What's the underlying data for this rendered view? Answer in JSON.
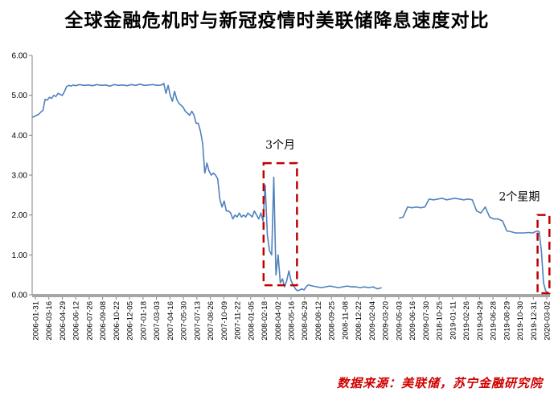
{
  "header": {
    "title": "全球金融危机时与新冠疫情时美联储降息速度对比"
  },
  "footer": {
    "source": "数据来源：美联储，苏宁金融研究院"
  },
  "chart_data": {
    "type": "line",
    "title": "全球金融危机时与新冠疫情时美联储降息速度对比",
    "xlabel": "",
    "ylabel": "",
    "ylim": [
      0,
      6
    ],
    "yticks": [
      "0.00",
      "1.00",
      "2.00",
      "3.00",
      "4.00",
      "5.00",
      "6.00"
    ],
    "grid": false,
    "x_tick_labels": [
      "2006-01-31",
      "2006-03-16",
      "2006-04-29",
      "2006-06-12",
      "2006-07-26",
      "2006-09-08",
      "2006-10-22",
      "2006-12-05",
      "2007-01-18",
      "2007-03-03",
      "2007-04-16",
      "2007-05-30",
      "2007-07-13",
      "2007-08-26",
      "2007-10-09",
      "2007-11-22",
      "2008-01-05",
      "2008-02-18",
      "2008-04-02",
      "2008-05-16",
      "2008-06-29",
      "2008-08-12",
      "2008-09-25",
      "2008-11-08",
      "2008-12-22",
      "2009-02-04",
      "2009-03-20",
      "2009-05-03",
      "2009-06-16",
      "2009-07-30",
      "2018-10-25",
      "2019-01-11",
      "2019-02-26",
      "2019-04-29",
      "2019-06-28",
      "2019-08-29",
      "2019-10-30",
      "2019-12-31",
      "2020-03-02"
    ],
    "series": [
      {
        "segment": "2006-2009",
        "points": [
          [
            0,
            4.45
          ],
          [
            1,
            4.47
          ],
          [
            2,
            4.5
          ],
          [
            3,
            4.52
          ],
          [
            4,
            4.58
          ],
          [
            5,
            4.62
          ],
          [
            6,
            4.9
          ],
          [
            7,
            4.88
          ],
          [
            8,
            4.95
          ],
          [
            9,
            4.92
          ],
          [
            10,
            5.0
          ],
          [
            11,
            4.97
          ],
          [
            12,
            5.05
          ],
          [
            13,
            5.02
          ],
          [
            14,
            5.0
          ],
          [
            15,
            5.1
          ],
          [
            16,
            5.22
          ],
          [
            17,
            5.25
          ],
          [
            18,
            5.23
          ],
          [
            19,
            5.26
          ],
          [
            20,
            5.24
          ],
          [
            22,
            5.27
          ],
          [
            24,
            5.25
          ],
          [
            26,
            5.26
          ],
          [
            28,
            5.24
          ],
          [
            30,
            5.27
          ],
          [
            32,
            5.25
          ],
          [
            34,
            5.26
          ],
          [
            36,
            5.23
          ],
          [
            38,
            5.27
          ],
          [
            40,
            5.25
          ],
          [
            42,
            5.26
          ],
          [
            44,
            5.24
          ],
          [
            46,
            5.27
          ],
          [
            48,
            5.25
          ],
          [
            50,
            5.28
          ],
          [
            52,
            5.25
          ],
          [
            54,
            5.26
          ],
          [
            56,
            5.27
          ],
          [
            58,
            5.25
          ],
          [
            60,
            5.26
          ],
          [
            61,
            5.3
          ],
          [
            62,
            5.05
          ],
          [
            63,
            5.25
          ],
          [
            64,
            5.0
          ],
          [
            65,
            4.85
          ],
          [
            66,
            5.1
          ],
          [
            67,
            4.9
          ],
          [
            68,
            4.8
          ],
          [
            69,
            4.75
          ],
          [
            70,
            4.7
          ],
          [
            71,
            4.6
          ],
          [
            72,
            4.55
          ],
          [
            73,
            4.5
          ],
          [
            74,
            4.6
          ],
          [
            75,
            4.5
          ],
          [
            76,
            4.3
          ],
          [
            77,
            4.3
          ],
          [
            78,
            4.1
          ],
          [
            79,
            3.8
          ],
          [
            80,
            3.05
          ],
          [
            81,
            3.3
          ],
          [
            82,
            3.1
          ],
          [
            83,
            3.0
          ],
          [
            84,
            3.05
          ],
          [
            85,
            3.0
          ],
          [
            86,
            2.9
          ],
          [
            87,
            2.4
          ],
          [
            88,
            2.2
          ],
          [
            89,
            2.35
          ],
          [
            90,
            2.1
          ],
          [
            91,
            2.1
          ],
          [
            92,
            2.05
          ],
          [
            93,
            1.9
          ],
          [
            94,
            2.0
          ],
          [
            95,
            1.95
          ],
          [
            96,
            2.05
          ],
          [
            97,
            1.95
          ],
          [
            98,
            2.0
          ],
          [
            99,
            1.95
          ],
          [
            100,
            2.05
          ],
          [
            101,
            2.0
          ],
          [
            102,
            1.95
          ],
          [
            103,
            2.1
          ],
          [
            104,
            2.0
          ],
          [
            105,
            1.9
          ],
          [
            106,
            2.05
          ],
          [
            107,
            1.85
          ],
          [
            108,
            2.75
          ],
          [
            109,
            1.5
          ],
          [
            110,
            1.1
          ],
          [
            111,
            1.0
          ],
          [
            112,
            2.95
          ],
          [
            113,
            0.5
          ],
          [
            114,
            1.0
          ],
          [
            115,
            0.3
          ],
          [
            116,
            0.4
          ],
          [
            117,
            0.2
          ],
          [
            118,
            0.35
          ],
          [
            119,
            0.6
          ],
          [
            120,
            0.35
          ],
          [
            121,
            0.25
          ],
          [
            122,
            0.15
          ],
          [
            123,
            0.1
          ],
          [
            124,
            0.12
          ],
          [
            125,
            0.15
          ],
          [
            126,
            0.12
          ],
          [
            127,
            0.2
          ],
          [
            128,
            0.25
          ],
          [
            130,
            0.22
          ],
          [
            132,
            0.2
          ],
          [
            134,
            0.18
          ],
          [
            136,
            0.2
          ],
          [
            138,
            0.22
          ],
          [
            140,
            0.2
          ],
          [
            142,
            0.18
          ],
          [
            144,
            0.2
          ],
          [
            146,
            0.22
          ],
          [
            148,
            0.2
          ],
          [
            150,
            0.2
          ],
          [
            152,
            0.18
          ],
          [
            154,
            0.2
          ],
          [
            156,
            0.18
          ],
          [
            158,
            0.2
          ],
          [
            160,
            0.15
          ],
          [
            162,
            0.18
          ]
        ]
      },
      {
        "segment": "2018-2020",
        "points": [
          [
            170,
            1.92
          ],
          [
            172,
            1.95
          ],
          [
            174,
            2.2
          ],
          [
            176,
            2.18
          ],
          [
            178,
            2.2
          ],
          [
            180,
            2.18
          ],
          [
            182,
            2.2
          ],
          [
            184,
            2.4
          ],
          [
            186,
            2.38
          ],
          [
            188,
            2.4
          ],
          [
            190,
            2.42
          ],
          [
            192,
            2.38
          ],
          [
            194,
            2.4
          ],
          [
            196,
            2.42
          ],
          [
            198,
            2.4
          ],
          [
            200,
            2.38
          ],
          [
            202,
            2.4
          ],
          [
            204,
            2.38
          ],
          [
            206,
            2.1
          ],
          [
            208,
            2.05
          ],
          [
            210,
            2.2
          ],
          [
            212,
            1.95
          ],
          [
            214,
            1.9
          ],
          [
            216,
            1.9
          ],
          [
            218,
            1.85
          ],
          [
            220,
            1.6
          ],
          [
            222,
            1.58
          ],
          [
            224,
            1.55
          ],
          [
            226,
            1.55
          ],
          [
            228,
            1.55
          ],
          [
            230,
            1.56
          ],
          [
            232,
            1.55
          ],
          [
            234,
            1.6
          ],
          [
            235,
            1.58
          ],
          [
            236,
            1.1
          ],
          [
            237,
            0.3
          ],
          [
            238,
            0.1
          ],
          [
            239,
            0.05
          ]
        ]
      }
    ],
    "annotations": [
      {
        "text": "3个月",
        "span": [
          108,
          122
        ],
        "ylim": [
          0.2,
          3.3
        ]
      },
      {
        "text": "2个星期",
        "span": [
          235,
          239
        ],
        "ylim": [
          0,
          2.0
        ]
      }
    ],
    "colors": {
      "line": "#4f81bd",
      "box": "#c00000",
      "axis": "#808080"
    }
  }
}
